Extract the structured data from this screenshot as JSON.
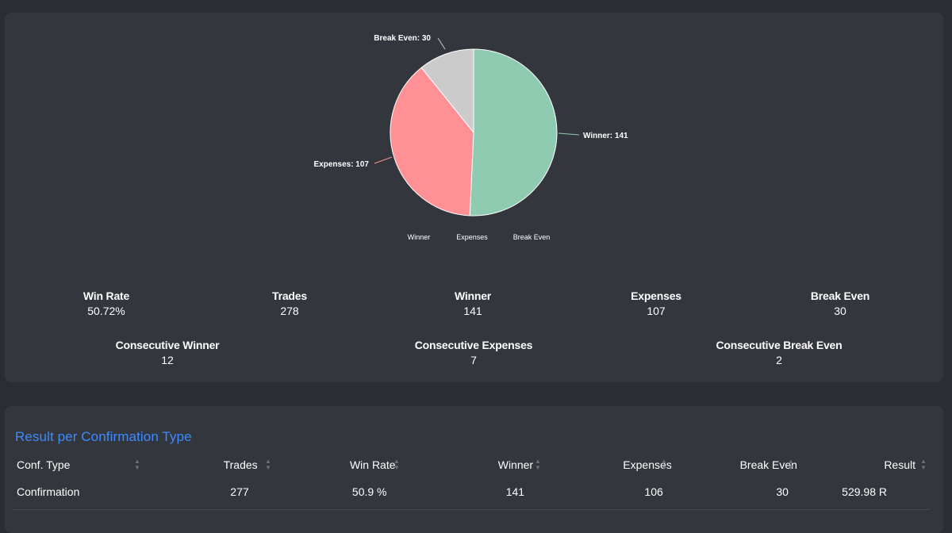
{
  "chart_data": {
    "type": "pie",
    "slices": [
      {
        "name": "Winner",
        "value": 141,
        "label": "Winner: 141",
        "color": "#8fcbb0"
      },
      {
        "name": "Expenses",
        "value": 107,
        "label": "Expenses: 107",
        "color": "#ff9196"
      },
      {
        "name": "Break Even",
        "value": 30,
        "label": "Break Even: 30",
        "color": "#cbcbcb"
      }
    ],
    "legend": [
      "Winner",
      "Expenses",
      "Break Even"
    ],
    "legend_position": "bottom"
  },
  "stats": {
    "win_rate": {
      "label": "Win Rate",
      "value": "50.72%"
    },
    "trades": {
      "label": "Trades",
      "value": "278"
    },
    "winner": {
      "label": "Winner",
      "value": "141"
    },
    "expenses": {
      "label": "Expenses",
      "value": "107"
    },
    "break_even": {
      "label": "Break Even",
      "value": "30"
    },
    "consecutive_winner": {
      "label": "Consecutive Winner",
      "value": "12"
    },
    "consecutive_expenses": {
      "label": "Consecutive Expenses",
      "value": "7"
    },
    "consecutive_break_even": {
      "label": "Consecutive Break Even",
      "value": "2"
    }
  },
  "table": {
    "title": "Result per Confirmation Type",
    "columns": [
      "Conf. Type",
      "Trades",
      "Win Rate",
      "Winner",
      "Expenses",
      "Break Even",
      "Result"
    ],
    "rows": [
      [
        "Confirmation",
        "277",
        "50.9 %",
        "141",
        "106",
        "30",
        "529.98 R"
      ]
    ]
  }
}
